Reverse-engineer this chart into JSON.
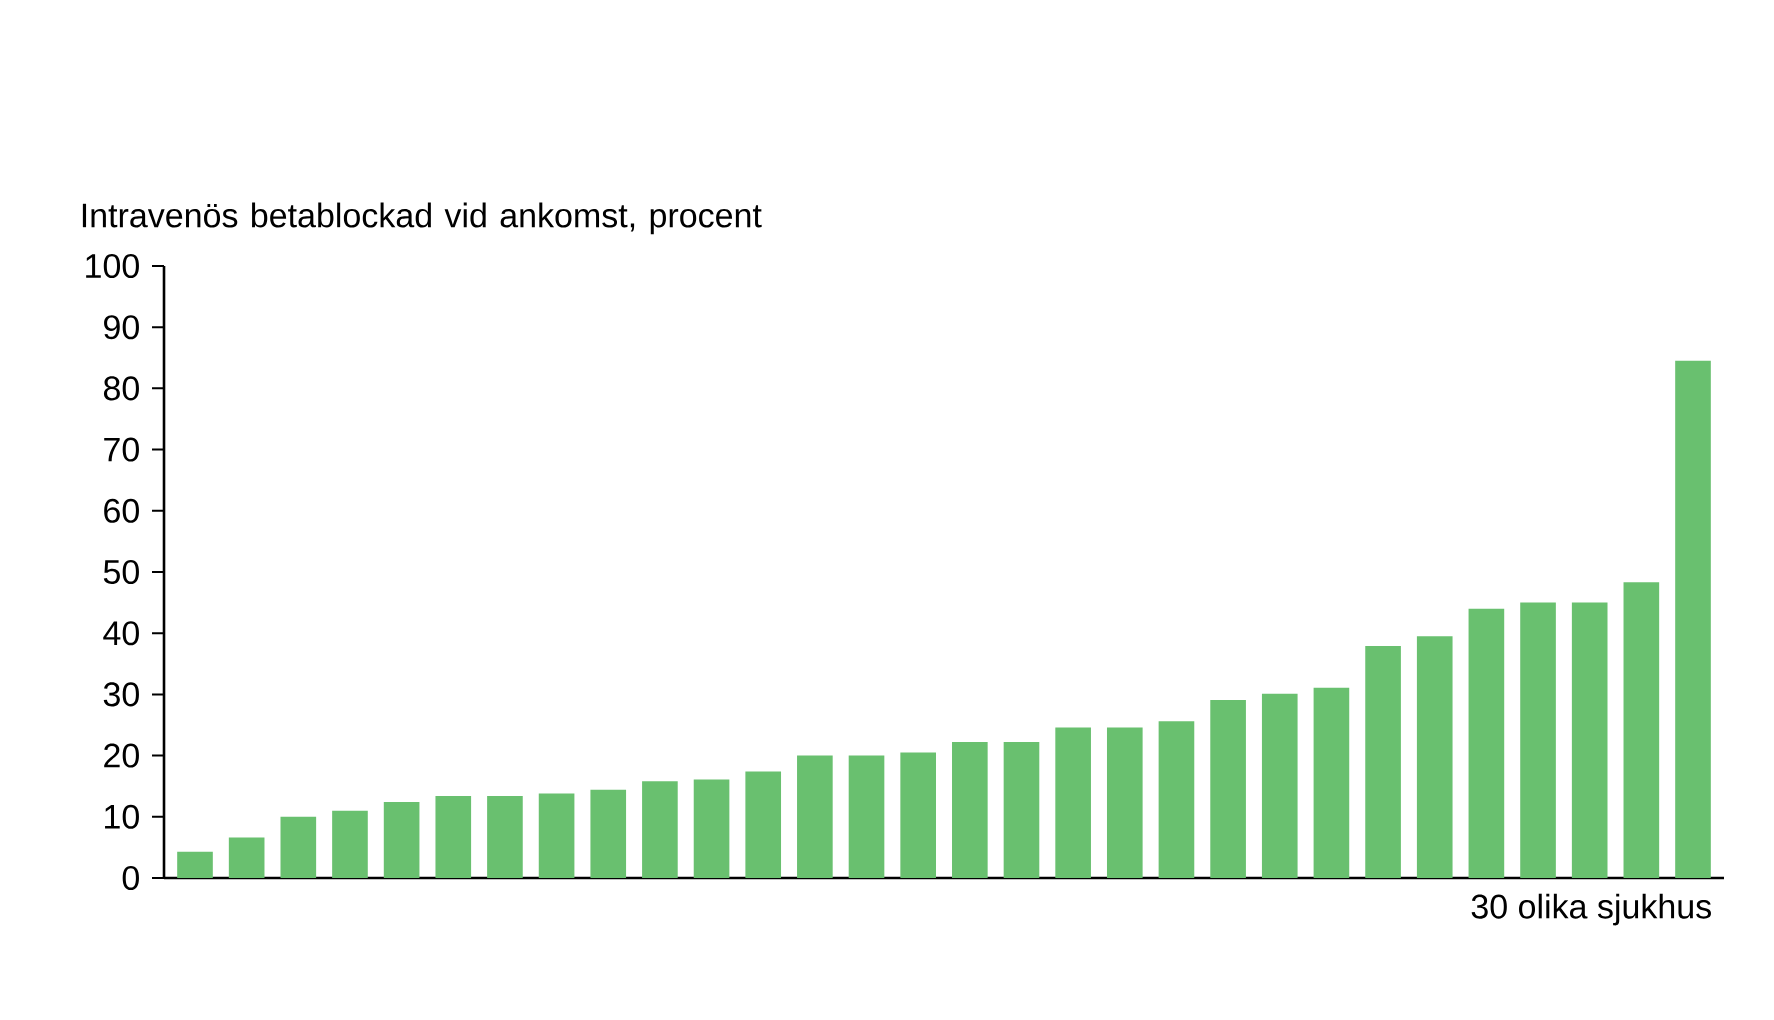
{
  "chart_data": {
    "type": "bar",
    "xlabel": "30 olika sjukhus",
    "ylabel": "Intravenös betablockad vid ankomst, procent",
    "categories": [
      null,
      null,
      null,
      null,
      null,
      null,
      null,
      null,
      null,
      null,
      null,
      null,
      null,
      null,
      null,
      null,
      null,
      null,
      null,
      null,
      null,
      null,
      null,
      null,
      null,
      null,
      null,
      null,
      null,
      null
    ],
    "values": [
      4.3,
      6.6,
      10,
      11,
      12.4,
      13.4,
      13.4,
      13.8,
      14.4,
      15.8,
      16.1,
      17.4,
      20,
      20,
      20.5,
      22.2,
      22.2,
      24.6,
      24.6,
      25.6,
      29.1,
      30.1,
      31.1,
      37.9,
      39.5,
      44,
      45,
      45,
      48.3,
      84.5
    ],
    "color": "#69c06f",
    "ylim": [
      0,
      100
    ],
    "yticks": [
      0,
      10,
      20,
      30,
      40,
      50,
      60,
      70,
      80,
      90,
      100
    ],
    "grid": false
  }
}
